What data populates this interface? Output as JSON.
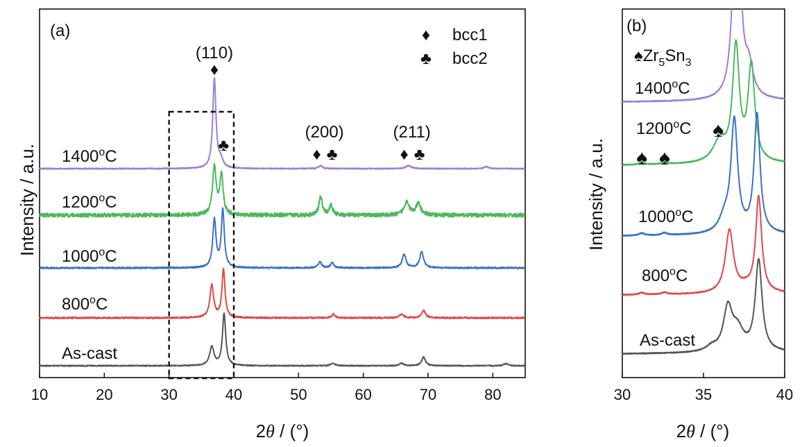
{
  "chart_data": [
    {
      "panel": "(a)",
      "type": "line",
      "xlabel_prefix": "2",
      "xlabel_theta": "θ",
      "xlabel_suffix": " / (°)",
      "ylabel": "Intensity / a.u.",
      "xlim": [
        10,
        85
      ],
      "xticks": [
        10,
        20,
        30,
        40,
        50,
        60,
        70,
        80
      ],
      "yscale": "arbitrary (curves vertically offset)",
      "grid": false,
      "legend": {
        "placement": "top-right",
        "entries": [
          {
            "symbol": "♦",
            "label": "bcc1"
          },
          {
            "symbol": "♣",
            "label": "bcc2"
          }
        ]
      },
      "highlight_box_x": [
        30,
        40
      ],
      "peak_annotations": [
        {
          "label": "(110)",
          "x": 37.0,
          "symbols": [
            "♦"
          ]
        },
        {
          "label": "(200)",
          "x": 54.0,
          "symbols": [
            "♦",
            "♣"
          ]
        },
        {
          "label": "(211)",
          "x": 67.5,
          "symbols": [
            "♦",
            "♣"
          ]
        }
      ],
      "extra_symbols": [
        {
          "symbol": "♣",
          "x": 38.2,
          "near": "1400°C"
        }
      ],
      "series": [
        {
          "name": "1400°C",
          "label_base": "1400",
          "label_sup": "o",
          "label_unit": "C",
          "color": "#9b7fd4",
          "baseline": 1.0,
          "noise": 0.01,
          "peaks": [
            [
              37.0,
              3.6,
              0.3
            ],
            [
              38.0,
              0.3,
              0.4
            ],
            [
              53.4,
              0.12,
              0.35
            ],
            [
              67.0,
              0.12,
              0.5
            ],
            [
              79.0,
              0.08,
              0.4
            ]
          ]
        },
        {
          "name": "1200°C",
          "label_base": "1200",
          "label_sup": "o",
          "label_unit": "C",
          "color": "#4cb85c",
          "baseline": 1.0,
          "noise": 0.04,
          "peaks": [
            [
              37.0,
              1.9,
              0.35
            ],
            [
              38.1,
              1.55,
              0.3
            ],
            [
              53.4,
              0.75,
              0.3
            ],
            [
              55.0,
              0.4,
              0.3
            ],
            [
              66.7,
              0.55,
              0.45
            ],
            [
              68.5,
              0.45,
              0.45
            ]
          ]
        },
        {
          "name": "1000°C",
          "label_base": "1000",
          "label_sup": "o",
          "label_unit": "C",
          "color": "#3b70c6",
          "baseline": 1.0,
          "noise": 0.015,
          "peaks": [
            [
              37.0,
              1.9,
              0.3
            ],
            [
              38.3,
              2.3,
              0.28
            ],
            [
              53.3,
              0.25,
              0.3
            ],
            [
              55.2,
              0.2,
              0.3
            ],
            [
              66.3,
              0.55,
              0.35
            ],
            [
              69.0,
              0.65,
              0.35
            ]
          ]
        },
        {
          "name": "800°C",
          "label_base": "800",
          "label_sup": "o",
          "label_unit": "C",
          "color": "#e04848",
          "baseline": 1.0,
          "noise": 0.015,
          "peaks": [
            [
              36.6,
              1.3,
              0.35
            ],
            [
              38.4,
              1.95,
              0.28
            ],
            [
              55.4,
              0.15,
              0.3
            ],
            [
              65.9,
              0.15,
              0.4
            ],
            [
              69.3,
              0.3,
              0.35
            ]
          ]
        },
        {
          "name": "As-cast",
          "label_base": "As-cast",
          "label_sup": "",
          "label_unit": "",
          "color": "#555555",
          "baseline": 1.0,
          "noise": 0.01,
          "peaks": [
            [
              36.6,
              0.75,
              0.4
            ],
            [
              38.5,
              2.1,
              0.3
            ],
            [
              55.3,
              0.1,
              0.4
            ],
            [
              65.9,
              0.1,
              0.4
            ],
            [
              69.3,
              0.35,
              0.35
            ],
            [
              82.0,
              0.08,
              0.4
            ]
          ]
        }
      ]
    },
    {
      "panel": "(b)",
      "type": "line",
      "xlabel_prefix": "2",
      "xlabel_theta": "θ",
      "xlabel_suffix": " / (°)",
      "ylabel": "Intensity / a.u.",
      "xlim": [
        30,
        40
      ],
      "xticks": [
        30,
        35,
        40
      ],
      "yscale": "arbitrary (curves vertically offset)",
      "grid": false,
      "legend": {
        "placement": "top-left",
        "entries": [
          {
            "symbol": "♠",
            "label_base": "Zr",
            "sub1": "5",
            "mid": "Sn",
            "sub2": "3"
          }
        ]
      },
      "spade_markers_x": [
        31.2,
        32.6,
        35.9
      ],
      "series": [
        {
          "name": "1400°C",
          "label_base": "1400",
          "label_sup": "o",
          "label_unit": "C",
          "color": "#9b7fd4",
          "peaks": [
            [
              37.05,
              6.0,
              0.22
            ],
            [
              37.8,
              0.6,
              0.3
            ]
          ]
        },
        {
          "name": "1200°C",
          "label_base": "1200",
          "label_sup": "o",
          "label_unit": "C",
          "color": "#4cb85c",
          "peaks": [
            [
              37.0,
              2.45,
              0.25
            ],
            [
              37.95,
              2.05,
              0.25
            ],
            [
              36.0,
              0.45,
              0.5
            ],
            [
              31.2,
              0.04,
              0.2
            ],
            [
              32.6,
              0.04,
              0.2
            ]
          ]
        },
        {
          "name": "1000°C",
          "label_base": "1000",
          "label_sup": "o",
          "label_unit": "C",
          "color": "#3b70c6",
          "peaks": [
            [
              36.9,
              2.4,
              0.25
            ],
            [
              38.3,
              2.55,
              0.22
            ],
            [
              36.3,
              0.3,
              0.4
            ],
            [
              31.2,
              0.05,
              0.2
            ],
            [
              32.6,
              0.05,
              0.2
            ]
          ]
        },
        {
          "name": "800°C",
          "label_base": "800",
          "label_sup": "o",
          "label_unit": "C",
          "color": "#e04848",
          "peaks": [
            [
              36.6,
              1.35,
              0.3
            ],
            [
              38.4,
              2.05,
              0.22
            ],
            [
              37.6,
              0.1,
              0.5
            ],
            [
              31.2,
              0.04,
              0.2
            ],
            [
              32.6,
              0.04,
              0.2
            ]
          ]
        },
        {
          "name": "As-cast",
          "label_base": "As-cast",
          "label_sup": "",
          "label_unit": "",
          "color": "#555555",
          "peaks": [
            [
              36.5,
              0.9,
              0.32
            ],
            [
              38.4,
              1.95,
              0.25
            ],
            [
              37.1,
              0.45,
              0.45
            ],
            [
              35.5,
              0.1,
              0.4
            ]
          ]
        }
      ]
    }
  ]
}
